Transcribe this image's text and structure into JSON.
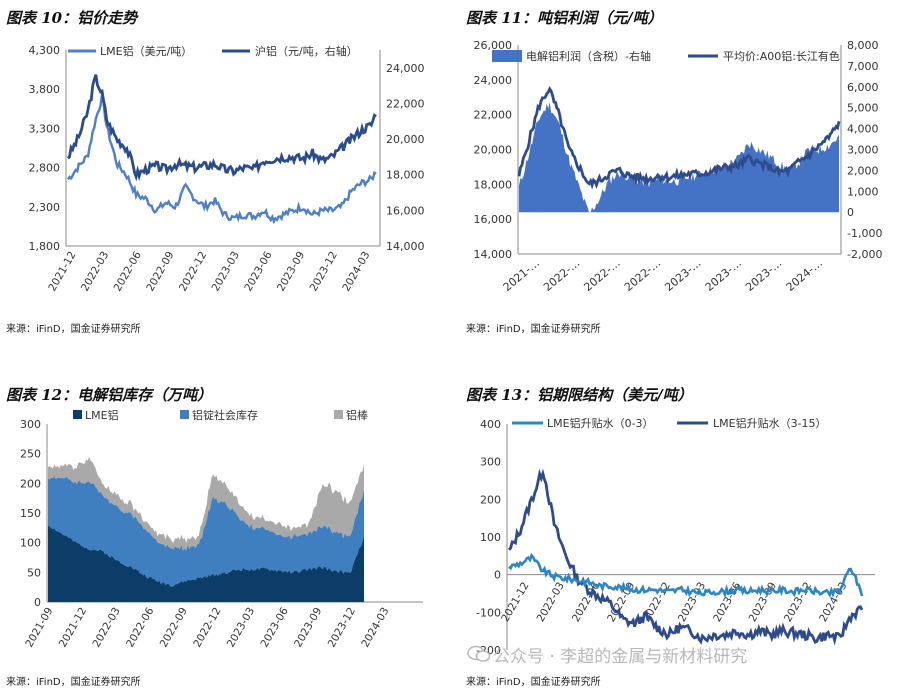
{
  "colors": {
    "light_blue": "#4f7fc8",
    "dark_blue": "#2a4c8c",
    "navy": "#0b3d68",
    "mid_blue": "#3f7fbf",
    "grey": "#a9a9a9",
    "fill_blue": "#4472c4",
    "sky": "#2b86c5",
    "navy2": "#2e4b8c"
  },
  "fig10": {
    "title": "图表 10：铝价走势",
    "source": "来源：iFinD，国金证券研究所"
  },
  "fig11": {
    "title": "图表 11：吨铝利润（元/吨）",
    "source": "来源：iFinD，国金证券研究所"
  },
  "fig12": {
    "title": "图表 12：电解铝库存（万吨）",
    "source": "来源：iFinD，国金证券研究所"
  },
  "fig13": {
    "title": "图表 13：铝期限结构（美元/吨）",
    "source": "来源：iFinD，国金证券研究所"
  },
  "watermark": "公众号 · 李超的金属与新材料研究",
  "chart_data": [
    {
      "id": "fig10",
      "type": "line",
      "legend": [
        "LME铝（美元/吨）",
        "沪铝（元/吨，右轴）"
      ],
      "x_ticks": [
        "2021-12",
        "2022-03",
        "2022-06",
        "2022-09",
        "2022-12",
        "2023-03",
        "2023-06",
        "2023-09",
        "2023-12",
        "2024-03"
      ],
      "y_left": {
        "ticks": [
          "1,800",
          "2,300",
          "2,800",
          "3,300",
          "3,800",
          "4,300"
        ],
        "lim": [
          1800,
          4300
        ]
      },
      "y_right": {
        "ticks": [
          "14,000",
          "16,000",
          "18,000",
          "20,000",
          "22,000",
          "24,000"
        ],
        "lim": [
          14000,
          25000
        ]
      },
      "series": [
        {
          "name": "LME铝（美元/吨）",
          "axis": "left",
          "t": [
            0,
            1,
            2,
            2.8,
            3.5,
            4,
            5,
            6,
            7,
            8,
            9,
            10,
            11,
            12,
            13,
            14,
            15,
            16,
            17,
            18,
            19,
            20,
            21,
            22,
            23,
            24,
            25,
            26,
            27,
            28,
            29,
            30,
            31,
            31.5
          ],
          "values": [
            2650,
            2800,
            2950,
            3400,
            3700,
            3300,
            2850,
            2700,
            2450,
            2400,
            2250,
            2350,
            2300,
            2550,
            2400,
            2300,
            2380,
            2200,
            2150,
            2200,
            2180,
            2250,
            2150,
            2200,
            2250,
            2300,
            2200,
            2250,
            2250,
            2300,
            2500,
            2600,
            2650,
            2750
          ]
        },
        {
          "name": "沪铝（元/吨，右轴）",
          "axis": "right",
          "t": [
            0,
            1,
            2,
            2.8,
            3.5,
            4,
            5,
            6,
            7,
            8,
            9,
            10,
            11,
            12,
            13,
            14,
            15,
            16,
            17,
            18,
            19,
            20,
            21,
            22,
            23,
            24,
            25,
            26,
            27,
            28,
            29,
            30,
            31,
            31.5
          ],
          "values": [
            19000,
            20000,
            21500,
            23500,
            22500,
            21000,
            20000,
            19500,
            18000,
            18300,
            18500,
            18300,
            18600,
            18500,
            18400,
            18500,
            18600,
            18300,
            18200,
            18400,
            18300,
            18800,
            18900,
            19000,
            19000,
            18900,
            19200,
            18800,
            19000,
            19500,
            20000,
            20500,
            20800,
            21500
          ]
        }
      ]
    },
    {
      "id": "fig11",
      "type": "area+line",
      "legend": [
        "电解铝利润（含税）-右轴",
        "平均价:A00铝:长江有色"
      ],
      "x_ticks": [
        "2021-…",
        "2022-…",
        "2022-…",
        "2022-…",
        "2023-…",
        "2023-…",
        "2023-…",
        "2024-…"
      ],
      "y_left": {
        "ticks": [
          "14,000",
          "16,000",
          "18,000",
          "20,000",
          "22,000",
          "24,000",
          "26,000"
        ],
        "lim": [
          14000,
          26000
        ]
      },
      "y_right": {
        "ticks": [
          "-2,000",
          "-1,000",
          "0",
          "1,000",
          "2,000",
          "3,000",
          "4,000",
          "5,000",
          "6,000",
          "7,000",
          "8,000"
        ],
        "lim": [
          -2000,
          8000
        ]
      },
      "series": [
        {
          "name": "电解铝利润（含税）-右轴",
          "axis": "right",
          "t": [
            0,
            1,
            2,
            3,
            4,
            5,
            6,
            7,
            8,
            9,
            10,
            11,
            12,
            13,
            14,
            15,
            16,
            17,
            18,
            19,
            20,
            21,
            22,
            23,
            24,
            25,
            26,
            27,
            28,
            29,
            30,
            31,
            32
          ],
          "values": [
            1200,
            2800,
            4500,
            5200,
            4200,
            2500,
            1200,
            -100,
            600,
            1500,
            1900,
            1700,
            1500,
            1400,
            1600,
            1500,
            1500,
            1700,
            1800,
            2000,
            2100,
            2300,
            2600,
            3300,
            3000,
            2700,
            2300,
            2000,
            2400,
            3000,
            3000,
            3200,
            3600
          ]
        },
        {
          "name": "平均价:A00铝:长江有色",
          "axis": "left",
          "t": [
            0,
            1,
            2,
            3,
            4,
            5,
            6,
            7,
            8,
            9,
            10,
            11,
            12,
            13,
            14,
            15,
            16,
            17,
            18,
            19,
            20,
            21,
            22,
            23,
            24,
            25,
            26,
            27,
            28,
            29,
            30,
            31,
            32
          ],
          "values": [
            18500,
            20500,
            22500,
            23500,
            22000,
            20000,
            19000,
            18000,
            18200,
            18600,
            18800,
            18500,
            18400,
            18300,
            18500,
            18400,
            18500,
            18600,
            18600,
            18700,
            18900,
            19000,
            19100,
            19500,
            19200,
            19000,
            18700,
            18800,
            19300,
            19700,
            20200,
            20700,
            21500
          ]
        }
      ]
    },
    {
      "id": "fig12",
      "type": "stacked-area",
      "legend": [
        "LME铝",
        "铝锭社会库存",
        "铝棒"
      ],
      "x_ticks": [
        "2021-09",
        "2021-12",
        "2022-03",
        "2022-06",
        "2022-09",
        "2022-12",
        "2023-03",
        "2023-06",
        "2023-09",
        "2023-12",
        "2024-03"
      ],
      "y_left": {
        "ticks": [
          "0",
          "50",
          "100",
          "150",
          "200",
          "250",
          "300"
        ],
        "lim": [
          0,
          300
        ]
      },
      "series": [
        {
          "name": "LME铝",
          "values": [
            130,
            115,
            100,
            90,
            85,
            70,
            60,
            45,
            35,
            28,
            35,
            40,
            45,
            50,
            55,
            55,
            55,
            52,
            50,
            55,
            58,
            52,
            48,
            110
          ]
        },
        {
          "name": "铝锭社会库存",
          "values": [
            80,
            95,
            100,
            115,
            95,
            90,
            90,
            80,
            65,
            65,
            55,
            55,
            130,
            115,
            85,
            70,
            65,
            60,
            60,
            60,
            70,
            65,
            60,
            80
          ]
        },
        {
          "name": "铝棒",
          "values": [
            20,
            20,
            25,
            40,
            20,
            20,
            18,
            15,
            15,
            15,
            15,
            15,
            40,
            30,
            25,
            20,
            18,
            18,
            15,
            15,
            70,
            70,
            55,
            45
          ]
        }
      ]
    },
    {
      "id": "fig13",
      "type": "line",
      "legend": [
        "LME铝升贴水（0-3）",
        "LME铝升贴水（3-15）"
      ],
      "x_ticks": [
        "2021-12",
        "2022-03",
        "2022-06",
        "2022-09",
        "2022-12",
        "2023-03",
        "2023-06",
        "2023-09",
        "2023-12",
        "2024-03"
      ],
      "y_left": {
        "ticks": [
          "-200",
          "-100",
          "0",
          "100",
          "200",
          "300",
          "400"
        ],
        "lim": [
          -200,
          400
        ]
      },
      "series": [
        {
          "name": "LME铝升贴水（0-3）",
          "values": [
            20,
            30,
            45,
            10,
            -5,
            -10,
            -15,
            -20,
            -30,
            -30,
            -35,
            -40,
            -40,
            -40,
            -45,
            -40,
            -45,
            -50,
            -45,
            -45,
            -40,
            -45,
            -40,
            -45,
            -40,
            -45,
            -40,
            -45,
            -50,
            -45,
            20,
            -50
          ]
        },
        {
          "name": "LME铝升贴水（3-15）",
          "values": [
            60,
            120,
            200,
            280,
            130,
            50,
            -10,
            -40,
            -60,
            -80,
            -120,
            -130,
            -110,
            -140,
            -160,
            -140,
            -150,
            -170,
            -160,
            -160,
            -150,
            -160,
            -150,
            -160,
            -150,
            -155,
            -160,
            -170,
            -160,
            -170,
            -110,
            -90
          ]
        }
      ]
    }
  ]
}
